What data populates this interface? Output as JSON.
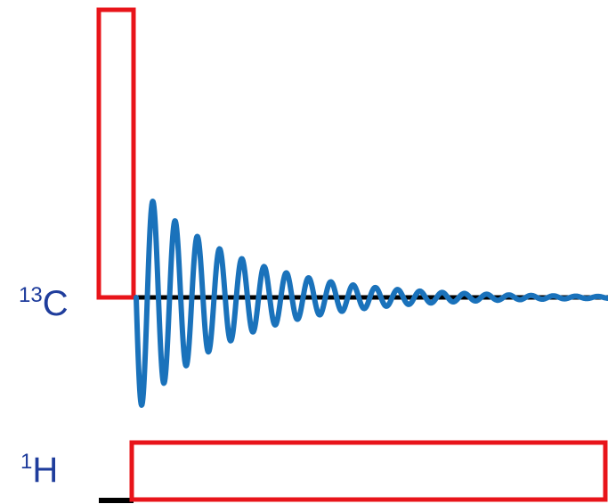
{
  "channels": {
    "carbon": {
      "isotope": "13",
      "element": "C"
    },
    "proton": {
      "isotope": "1",
      "element": "H"
    }
  },
  "colors": {
    "pulse": "#e8141a",
    "fid": "#1a72bb",
    "baseline": "#000000",
    "label": "#1f3d9c"
  }
}
